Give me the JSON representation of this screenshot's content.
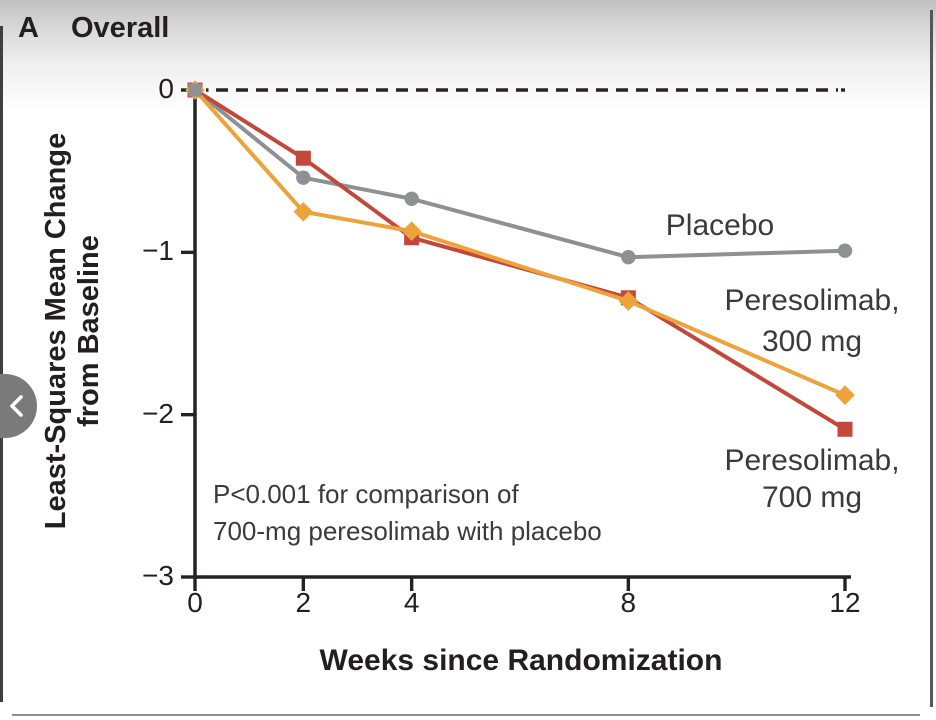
{
  "panel": {
    "label": "A",
    "title": "Overall"
  },
  "nav": {
    "back_chevron": "chevron-left"
  },
  "chart_data": {
    "type": "line",
    "panel_label": "A",
    "title": "Overall",
    "xlabel": "Weeks since Randomization",
    "ylabel": [
      "Least-Squares Mean Change",
      "from Baseline"
    ],
    "xlim": [
      0,
      12
    ],
    "ylim": [
      -3,
      0
    ],
    "grid": false,
    "zero_reference_line": "dashed",
    "x_tick_values": [
      0,
      2,
      4,
      8,
      12
    ],
    "x_tick_labels": [
      "0",
      "2",
      "4",
      "8",
      "12"
    ],
    "y_tick_values": [
      0,
      -1,
      -2,
      -3
    ],
    "y_tick_labels": [
      "0",
      "−1",
      "−2",
      "−3"
    ],
    "x": [
      0,
      2,
      4,
      8,
      12
    ],
    "series": [
      {
        "name": "Placebo",
        "marker": "circle",
        "color": "#8e9193",
        "values": [
          0,
          -0.54,
          -0.67,
          -1.03,
          -0.99
        ]
      },
      {
        "name": "Peresolimab, 700 mg",
        "marker": "square",
        "color": "#c2483b",
        "values": [
          0,
          -0.42,
          -0.91,
          -1.28,
          -2.09
        ]
      },
      {
        "name": "Peresolimab, 300 mg",
        "marker": "diamond",
        "color": "#eda33c",
        "values": [
          0,
          -0.75,
          -0.87,
          -1.3,
          -1.88
        ]
      }
    ],
    "annotation": [
      "P<0.001 for comparison of",
      "700-mg peresolimab with placebo"
    ],
    "legend": {
      "position": "inline-right",
      "placebo": "Placebo",
      "peresolimab_300": [
        "Peresolimab,",
        "300 mg"
      ],
      "peresolimab_700": [
        "Peresolimab,",
        "700 mg"
      ]
    },
    "axis_color": "#262223",
    "origin_marker_color": "#8e9193"
  }
}
